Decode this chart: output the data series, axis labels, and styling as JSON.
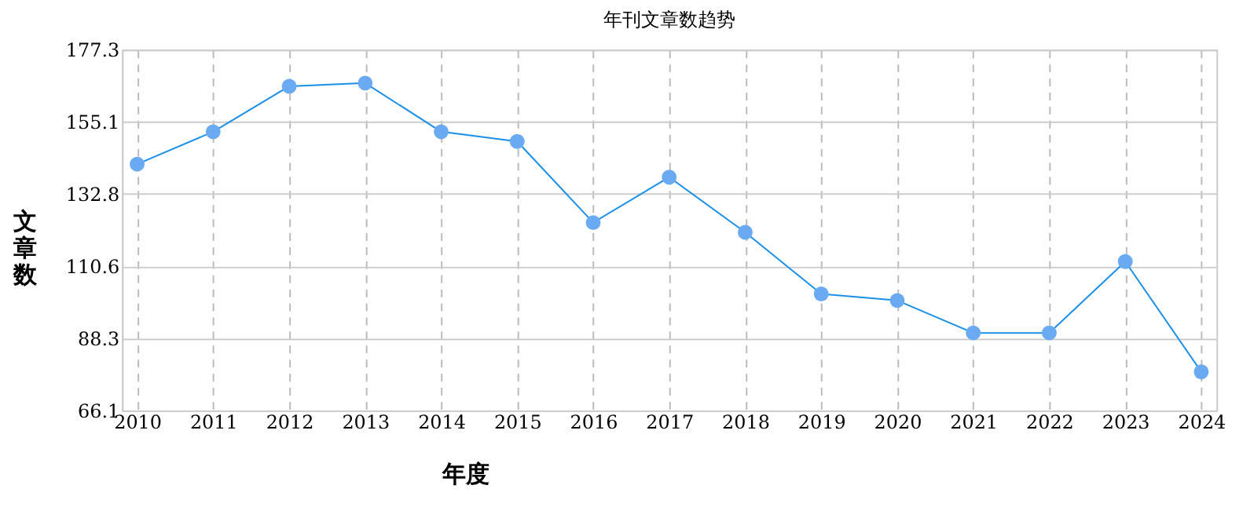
{
  "chart_data": {
    "type": "line",
    "title": "年刊文章数趋势",
    "xlabel": "年度",
    "ylabel": "文章数",
    "categories": [
      "2010",
      "2011",
      "2012",
      "2013",
      "2014",
      "2015",
      "2016",
      "2017",
      "2018",
      "2019",
      "2020",
      "2021",
      "2022",
      "2023",
      "2024"
    ],
    "series": [
      {
        "color": "#1a8fe8",
        "values": [
          142,
          152,
          166,
          167,
          152,
          149,
          124,
          138,
          121,
          102,
          100,
          90,
          90,
          112,
          78
        ]
      }
    ],
    "ylim": [
      66.1,
      177.3
    ],
    "yticks": [
      66.1,
      88.3,
      110.6,
      132.8,
      155.1,
      177.3
    ],
    "grid": true,
    "marker": "circle",
    "line_style": "solid"
  }
}
